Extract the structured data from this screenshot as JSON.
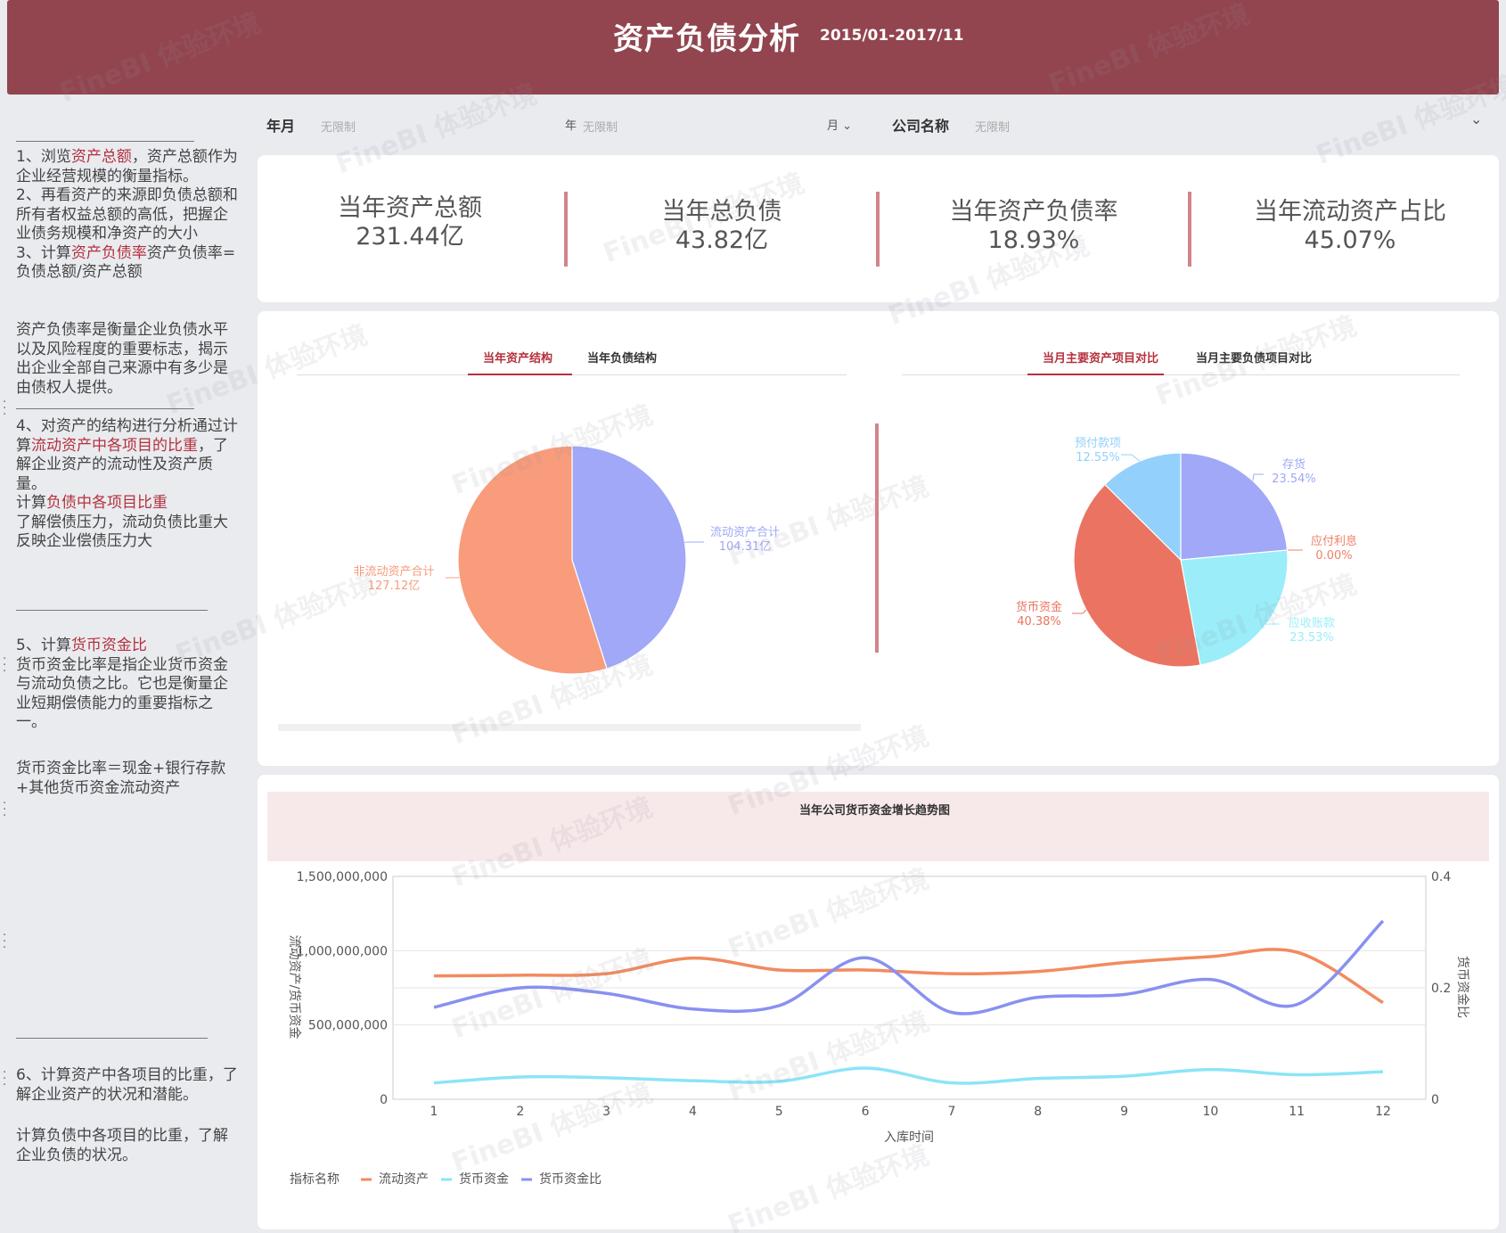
{
  "header": {
    "title": "资产负债分析",
    "range": "2015/01-2017/11"
  },
  "sidebar": {
    "p1a": "1、浏览",
    "p1b": "资产总额",
    "p1c": "，资产总额作为企业经营规模的衡量指标。",
    "p2": "2、再看资产的来源即负债总额和所有者权益总额的高低，把握企业债务规模和净资产的大小",
    "p3a": "3、计算",
    "p3b": "资产负债率",
    "p3c": "资产负债率=负债总额/资产总额",
    "p4": "资产负债率是衡量企业负债水平以及风险程度的重要标志，揭示出企业全部自己来源中有多少是由债权人提供。",
    "p5a": "4、对资产的结构进行分析通过计算",
    "p5b": "流动资产中各项目的比重",
    "p5c": "，了解企业资产的流动性及资产质量。",
    "p5d": "计算",
    "p5e": "负债中各项目比重",
    "p5f": "了解偿债压力，流动负债比重大反映企业偿债压力大",
    "p6a": "5、计算",
    "p6b": "货币资金比",
    "p6c": "货币资金比率是指企业货币资金与流动负债之比。它也是衡量企业短期偿债能力的重要指标之一。",
    "p7": "货币资金比率＝现金+银行存款+其他货币资金流动资产",
    "p8": "6、计算资产中各项目的比重，了解企业资产的状况和潜能。",
    "p9": "计算负债中各项目的比重，了解企业负债的状况。"
  },
  "filters": {
    "year_month_label": "年月",
    "year_month_ph": "无限制",
    "year_label": "年",
    "year_ph": "无限制",
    "month_label": "月",
    "company_label": "公司名称",
    "company_ph": "无限制"
  },
  "kpis": [
    {
      "label": "当年资产总额",
      "value": "231.44亿"
    },
    {
      "label": "当年总负债",
      "value": "43.82亿"
    },
    {
      "label": "当年资产负债率",
      "value": "18.93%"
    },
    {
      "label": "当年流动资产占比",
      "value": "45.07%"
    }
  ],
  "tabs_left": [
    "当年资产结构",
    "当年负债结构"
  ],
  "tabs_right": [
    "当月主要资产项目对比",
    "当月主要负债项目对比"
  ],
  "pie1": {
    "slices": [
      {
        "name": "流动资产合计",
        "value": "104.31亿",
        "share": 0.4507,
        "color": "#a0a8f7"
      },
      {
        "name": "非流动资产合计",
        "value": "127.12亿",
        "share": 0.5493,
        "color": "#f89c7b"
      }
    ]
  },
  "pie2": {
    "slices": [
      {
        "name": "存货",
        "value": "23.54%",
        "share": 0.2354,
        "color": "#a0a8f7"
      },
      {
        "name": "应付利息",
        "value": "0.00%",
        "share": 0.0,
        "color": "#f08068"
      },
      {
        "name": "应收账款",
        "value": "23.53%",
        "share": 0.2353,
        "color": "#9aedf9"
      },
      {
        "name": "货币资金",
        "value": "40.38%",
        "share": 0.4038,
        "color": "#ea7461"
      },
      {
        "name": "预付款项",
        "value": "12.55%",
        "share": 0.1255,
        "color": "#93d0fb"
      }
    ]
  },
  "chart_data": {
    "type": "line",
    "title": "当年公司货币资金增长趋势图",
    "xlabel": "入库时间",
    "ylabel": "流动资产/货币资金",
    "y2label": "货币资金比",
    "x": [
      "1",
      "2",
      "3",
      "4",
      "5",
      "6",
      "7",
      "8",
      "9",
      "10",
      "11",
      "12"
    ],
    "ylim": [
      0,
      1500000000
    ],
    "y_ticks": [
      "1,500,000,000",
      "1,000,000,000",
      "500,000,000",
      "0"
    ],
    "y_tick_values": [
      1500000000,
      1000000000,
      500000000,
      0
    ],
    "y2lim": [
      0,
      0.4
    ],
    "y2_ticks": [
      "0.4",
      "0.2",
      "0"
    ],
    "y2_tick_values": [
      0.4,
      0.2,
      0
    ],
    "legend_title": "指标名称",
    "series": [
      {
        "name": "流动资产",
        "axis": "left",
        "color": "#f28a5f",
        "values": [
          830000000,
          835000000,
          845000000,
          950000000,
          870000000,
          870000000,
          845000000,
          860000000,
          920000000,
          960000000,
          990000000,
          650000000
        ]
      },
      {
        "name": "货币资金",
        "axis": "left",
        "color": "#8ce4f7",
        "values": [
          110000000,
          150000000,
          145000000,
          125000000,
          120000000,
          210000000,
          110000000,
          140000000,
          155000000,
          200000000,
          165000000,
          185000000
        ]
      },
      {
        "name": "货币资金比",
        "axis": "right",
        "color": "#8891f0",
        "values": [
          0.165,
          0.2,
          0.19,
          0.162,
          0.168,
          0.254,
          0.156,
          0.183,
          0.188,
          0.215,
          0.17,
          0.32
        ]
      }
    ]
  }
}
